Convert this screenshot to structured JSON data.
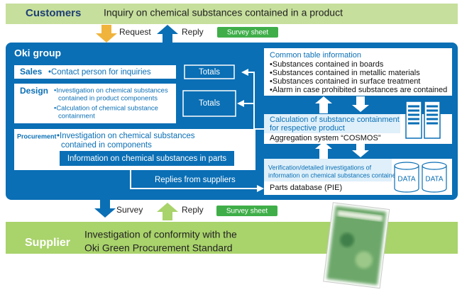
{
  "customers": {
    "label": "Customers",
    "text": "Inquiry on chemical substances contained in a product"
  },
  "top_flow": {
    "request": "Request",
    "reply": "Reply",
    "badge": "Survey sheet"
  },
  "oki_group": {
    "title": "Oki group",
    "sales": {
      "label": "Sales",
      "items": [
        "•Contact person for inquiries"
      ]
    },
    "design": {
      "label": "Design",
      "items": [
        "•Investigation on chemical substances",
        "contained in product components",
        "•Calculation of chemical substance",
        "containment"
      ]
    },
    "totals": [
      "Totals",
      "Totals"
    ],
    "procurement": {
      "label": "Procurement",
      "items": [
        "•Investigation on chemical substances",
        "contained in components"
      ],
      "inner": "Information on chemical substances in parts"
    },
    "replies": "Replies from suppliers",
    "common_table": {
      "title": "Common table information",
      "items": [
        "•Substances contained in boards",
        "•Substances contained in metallic materials",
        "•Substances contained in surface treatment",
        "•Alarm in case prohibited substances are contained"
      ]
    },
    "calculation": {
      "lines": [
        "Calculation of substance containment",
        "for respective product"
      ],
      "system": "Aggregation system “COSMOS”"
    },
    "parts_db": {
      "lines": [
        "Verification/detailed investigations of",
        "information on chemical substances contained"
      ],
      "name": "Parts database (PIE)",
      "data": [
        "DATA",
        "DATA"
      ]
    }
  },
  "bottom_flow": {
    "survey": "Survey",
    "reply": "Reply",
    "badge": "Survey sheet"
  },
  "supplier": {
    "label": "Supplier",
    "lines": [
      "Investigation of conformity  with the",
      "Oki Green Procurement Standard"
    ]
  }
}
